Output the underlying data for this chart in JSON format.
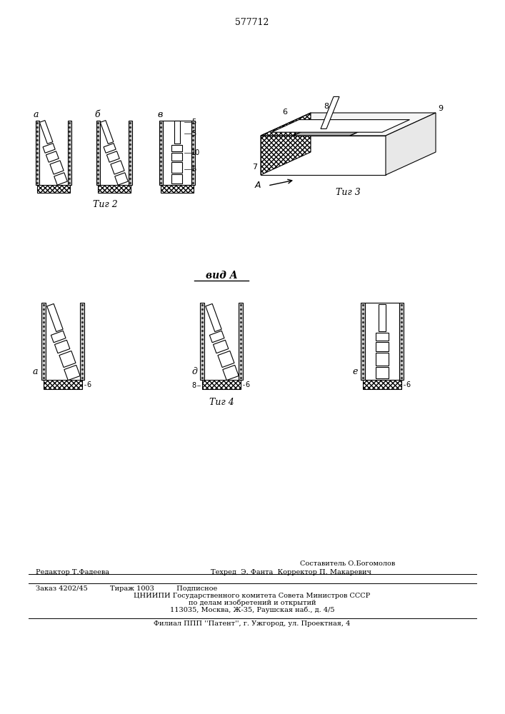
{
  "title_number": "577712",
  "fig2_label": "Τиг 2",
  "fig3_label": "Τиг 3",
  "fig4_label": "Τиг 4",
  "view_label": "вид A",
  "sub_labels_fig2": [
    "а",
    "б",
    "в"
  ],
  "sub_labels_fig4": [
    "а",
    "д",
    "е"
  ],
  "numbers_fig2": [
    "5",
    "3",
    "10",
    "6"
  ],
  "numbers_fig3": [
    "6",
    "8",
    "9",
    "7"
  ],
  "footer_line1": "Составитель О.Богомолов",
  "footer_line2_left": "Редактор Т.Фадеева",
  "footer_line2_right": "Техред  Э. Фанта  Корректор П. Макаревич",
  "footer_line3": "Заказ 4202/45          Тираж 1003          Подписное",
  "footer_line4": "ЦНИИПИ Государственного комитета Совета Министров СССР",
  "footer_line5": "по делам изобретений и открытий",
  "footer_line6": "113035, Москва, Ж-35, Раушская наб., д. 4/5",
  "footer_line7": "Филиал ППП ''Патент'', г. Ужгород, ул. Проектная, 4",
  "bg_color": "#ffffff",
  "line_color": "#000000"
}
